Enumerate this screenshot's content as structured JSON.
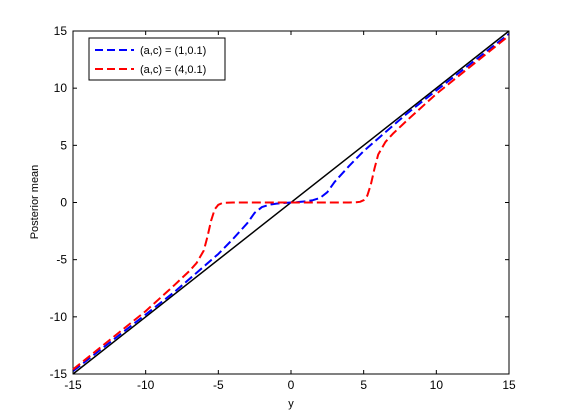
{
  "chart_data": {
    "type": "line",
    "xlabel": "y",
    "ylabel": "Posterior mean",
    "xlim": [
      -15,
      15
    ],
    "ylim": [
      -15,
      15
    ],
    "xticks": [
      -15,
      -10,
      -5,
      0,
      5,
      10,
      15
    ],
    "yticks": [
      -15,
      -10,
      -5,
      0,
      5,
      10,
      15
    ],
    "grid": false,
    "legend_position": "top-left",
    "series": [
      {
        "name": "(a,c) = (1,0.1)",
        "color": "#0000ff",
        "style": "dashed",
        "x": [
          -15,
          -10,
          -8,
          -6,
          -5,
          -4,
          -3,
          -2.5,
          -2,
          -1.5,
          -1,
          -0.5,
          0,
          0.5,
          1,
          1.5,
          2,
          2.5,
          3,
          4,
          5,
          6,
          8,
          10,
          15
        ],
        "y": [
          -14.75,
          -9.8,
          -7.8,
          -5.6,
          -4.5,
          -3.2,
          -1.8,
          -0.9,
          -0.4,
          -0.2,
          -0.1,
          -0.04,
          0,
          0.04,
          0.1,
          0.2,
          0.4,
          0.9,
          1.8,
          3.2,
          4.5,
          5.6,
          7.8,
          9.8,
          14.75
        ]
      },
      {
        "name": "(a,c) = (4,0.1)",
        "color": "#ff0000",
        "style": "dashed",
        "x": [
          -15,
          -10,
          -8,
          -7,
          -6.5,
          -6,
          -5.75,
          -5.5,
          -5.25,
          -5,
          -4.75,
          -4.5,
          -4,
          -3,
          0,
          3,
          4,
          4.5,
          4.75,
          5,
          5.25,
          5.5,
          5.75,
          6,
          6.5,
          7,
          8,
          10,
          15
        ],
        "y": [
          -14.6,
          -9.5,
          -7.2,
          -6.0,
          -5.3,
          -4.2,
          -3.0,
          -1.6,
          -0.6,
          -0.2,
          -0.06,
          -0.02,
          0,
          0,
          0,
          0,
          0,
          0.02,
          0.06,
          0.2,
          0.6,
          1.6,
          3.0,
          4.2,
          5.3,
          6.0,
          7.2,
          9.5,
          14.6
        ]
      },
      {
        "name": "",
        "color": "#000000",
        "style": "solid",
        "x": [
          -15,
          15
        ],
        "y": [
          -15,
          15
        ]
      }
    ]
  }
}
